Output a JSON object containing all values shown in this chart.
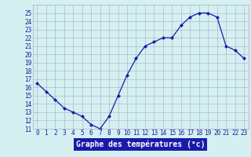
{
  "hours": [
    0,
    1,
    2,
    3,
    4,
    5,
    6,
    7,
    8,
    9,
    10,
    11,
    12,
    13,
    14,
    15,
    16,
    17,
    18,
    19,
    20,
    21,
    22,
    23
  ],
  "temps": [
    16.5,
    15.5,
    14.5,
    13.5,
    13.0,
    12.5,
    11.5,
    11.0,
    12.5,
    15.0,
    17.5,
    19.5,
    21.0,
    21.5,
    22.0,
    22.0,
    23.5,
    24.5,
    25.0,
    25.0,
    24.5,
    21.0,
    20.5,
    19.5
  ],
  "line_color": "#1a1aaa",
  "marker": "D",
  "markersize": 2.0,
  "linewidth": 0.9,
  "bg_color": "#d4f0f0",
  "grid_color": "#aaaacc",
  "xlabel": "Graphe des températures (°c)",
  "xlabel_bg": "#1a1aaa",
  "xlabel_color": "#ffffff",
  "ylim": [
    11,
    26
  ],
  "xlim": [
    -0.5,
    23.5
  ],
  "yticks": [
    11,
    12,
    13,
    14,
    15,
    16,
    17,
    18,
    19,
    20,
    21,
    22,
    23,
    24,
    25
  ],
  "xticks": [
    0,
    1,
    2,
    3,
    4,
    5,
    6,
    7,
    8,
    9,
    10,
    11,
    12,
    13,
    14,
    15,
    16,
    17,
    18,
    19,
    20,
    21,
    22,
    23
  ],
  "tick_fontsize": 5.5,
  "label_fontsize": 7.0
}
